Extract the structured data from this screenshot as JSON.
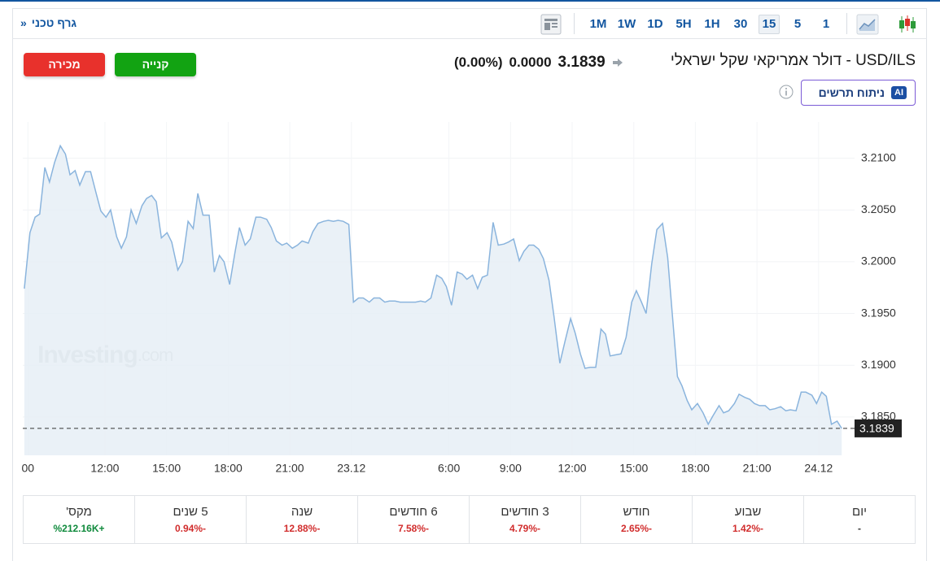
{
  "toolbar": {
    "technical_chart_link": "גרף טכני",
    "technical_chart_arrow": "»",
    "intervals": [
      "1M",
      "1W",
      "1D",
      "5H",
      "1H",
      "30",
      "15",
      "5",
      "1"
    ],
    "selected_interval": "15"
  },
  "header": {
    "instrument": "USD/ILS - דולר אמריקאי שקל ישראלי",
    "price": "3.1839",
    "change": "0.0000",
    "change_percent": "(0.00%)",
    "buy_button": "קנייה",
    "sell_button": "מכירה",
    "analysis_badge": "AI",
    "analysis_button": "ניתוח תרשים"
  },
  "chart_data": {
    "type": "area",
    "color": "#8ab4dd",
    "fill_color": "#e6eef6",
    "watermark": [
      "Investing",
      ".com"
    ],
    "last_price": 3.1839,
    "grid": true,
    "xlim": [
      0,
      162
    ],
    "ylim": [
      3.1813,
      3.2135
    ],
    "xticks": [
      {
        "value": 1,
        "label": "00"
      },
      {
        "value": 16,
        "label": "12:00"
      },
      {
        "value": 28,
        "label": "15:00"
      },
      {
        "value": 40,
        "label": "18:00"
      },
      {
        "value": 52,
        "label": "21:00"
      },
      {
        "value": 64,
        "label": "23.12"
      },
      {
        "value": 83,
        "label": "6:00"
      },
      {
        "value": 95,
        "label": "9:00"
      },
      {
        "value": 107,
        "label": "12:00"
      },
      {
        "value": 119,
        "label": "15:00"
      },
      {
        "value": 131,
        "label": "18:00"
      },
      {
        "value": 143,
        "label": "21:00"
      },
      {
        "value": 155,
        "label": "24.12"
      }
    ],
    "yticks": [
      {
        "value": 3.185,
        "label": "3.1850"
      },
      {
        "value": 3.19,
        "label": "3.1900"
      },
      {
        "value": 3.195,
        "label": "3.1950"
      },
      {
        "value": 3.2,
        "label": "3.2000"
      },
      {
        "value": 3.205,
        "label": "3.2050"
      },
      {
        "value": 3.21,
        "label": "3.2100"
      }
    ],
    "x": [
      0.3,
      1.4,
      2.4,
      3.3,
      4.3,
      5.2,
      6.2,
      7.3,
      8.3,
      9.2,
      10.2,
      11.1,
      12.2,
      13.2,
      14.3,
      15.2,
      16.2,
      17.1,
      18.3,
      19.2,
      20.2,
      21.1,
      22.1,
      23.2,
      24.1,
      25.1,
      26.0,
      27.0,
      28.1,
      29.0,
      30.2,
      31.1,
      32.2,
      33.2,
      34.1,
      35.1,
      36.3,
      37.3,
      38.3,
      39.2,
      40.3,
      41.3,
      42.2,
      43.3,
      44.3,
      45.4,
      46.3,
      47.5,
      48.4,
      49.4,
      50.5,
      51.4,
      52.5,
      53.5,
      54.4,
      55.6,
      56.5,
      57.5,
      58.6,
      59.5,
      60.5,
      61.4,
      62.4,
      63.5,
      64.4,
      65.4,
      66.3,
      67.5,
      68.4,
      69.5,
      70.5,
      71.4,
      72.5,
      73.5,
      74.4,
      75.6,
      76.5,
      77.5,
      78.4,
      79.5,
      80.6,
      81.6,
      82.5,
      83.5,
      84.6,
      85.6,
      86.5,
      87.6,
      88.6,
      89.5,
      90.5,
      91.6,
      92.6,
      93.7,
      94.6,
      95.6,
      96.7,
      97.6,
      98.6,
      99.5,
      100.5,
      101.4,
      102.5,
      103.5,
      104.6,
      105.6,
      106.7,
      107.6,
      108.6,
      109.5,
      110.5,
      111.6,
      112.6,
      113.5,
      114.4,
      115.4,
      116.5,
      117.5,
      118.6,
      119.5,
      120.5,
      121.4,
      122.5,
      123.5,
      124.6,
      125.6,
      126.5,
      127.5,
      128.4,
      129.4,
      130.3,
      131.4,
      132.5,
      133.5,
      134.4,
      135.6,
      136.5,
      137.5,
      138.6,
      139.5,
      140.6,
      141.6,
      142.5,
      143.5,
      144.6,
      145.5,
      146.5,
      147.6,
      148.6,
      149.5,
      150.6,
      151.6,
      152.5,
      153.7,
      154.6,
      155.6,
      156.5,
      157.5,
      158.6,
      159.5
    ],
    "values": [
      3.1974,
      3.2028,
      3.2043,
      3.2046,
      3.2091,
      3.2077,
      3.2096,
      3.2112,
      3.2104,
      3.2084,
      3.2088,
      3.2074,
      3.2087,
      3.2087,
      3.2066,
      3.2049,
      3.2043,
      3.205,
      3.2024,
      3.2013,
      3.2024,
      3.205,
      3.2037,
      3.2054,
      3.2061,
      3.2064,
      3.2058,
      3.2023,
      3.2028,
      3.2019,
      3.1992,
      3.2,
      3.2039,
      3.2032,
      3.2066,
      3.2045,
      3.2045,
      3.199,
      3.2006,
      3.2,
      3.1978,
      3.2008,
      3.2033,
      3.2016,
      3.2022,
      3.2043,
      3.2043,
      3.2041,
      3.2033,
      3.202,
      3.2016,
      3.2018,
      3.2013,
      3.2016,
      3.202,
      3.2018,
      3.2029,
      3.2037,
      3.2039,
      3.204,
      3.2039,
      3.204,
      3.2039,
      3.2036,
      3.1961,
      3.1965,
      3.1965,
      3.1961,
      3.1965,
      3.1965,
      3.1961,
      3.1962,
      3.1962,
      3.1961,
      3.1961,
      3.1961,
      3.1961,
      3.1962,
      3.1961,
      3.1965,
      3.1987,
      3.1984,
      3.1976,
      3.1958,
      3.199,
      3.1988,
      3.1983,
      3.1987,
      3.1974,
      3.1985,
      3.1987,
      3.2038,
      3.2016,
      3.2017,
      3.2019,
      3.2022,
      3.2001,
      3.201,
      3.2016,
      3.2016,
      3.2012,
      3.2003,
      3.1982,
      3.1946,
      3.1902,
      3.1923,
      3.1945,
      3.1931,
      3.1911,
      3.1897,
      3.1898,
      3.1898,
      3.1935,
      3.193,
      3.1909,
      3.191,
      3.1911,
      3.1927,
      3.1961,
      3.1972,
      3.1961,
      3.195,
      3.1998,
      3.2031,
      3.2037,
      3.2004,
      3.195,
      3.1889,
      3.188,
      3.1866,
      3.1857,
      3.1863,
      3.1854,
      3.1843,
      3.1851,
      3.1861,
      3.1854,
      3.1856,
      3.1863,
      3.1872,
      3.1869,
      3.1867,
      3.1863,
      3.1861,
      3.1861,
      3.1857,
      3.1858,
      3.186,
      3.1856,
      3.1857,
      3.1856,
      3.1874,
      3.1874,
      3.1871,
      3.1863,
      3.1874,
      3.187,
      3.1843,
      3.1846,
      3.1839
    ]
  },
  "performance": [
    {
      "label": "יום",
      "value": "-"
    },
    {
      "label": "שבוע",
      "value": "-1.42%"
    },
    {
      "label": "חודש",
      "value": "-2.65%"
    },
    {
      "label": "3 חודשים",
      "value": "-4.79%"
    },
    {
      "label": "6 חודשים",
      "value": "-7.58%"
    },
    {
      "label": "שנה",
      "value": "-12.88%"
    },
    {
      "label": "5 שנים",
      "value": "-0.94%"
    },
    {
      "label": "מקס'",
      "value": "+212.16K%"
    }
  ]
}
